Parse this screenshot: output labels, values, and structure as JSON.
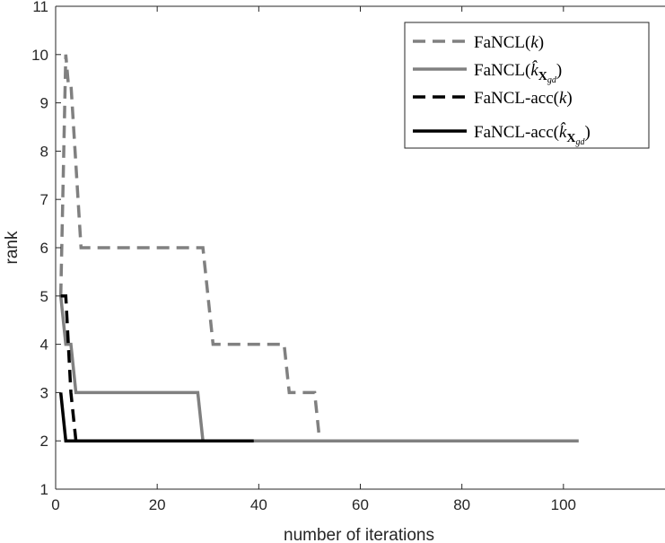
{
  "chart_data": {
    "type": "line",
    "xlabel": "number of iterations",
    "ylabel": "rank",
    "xlim": [
      0,
      120
    ],
    "ylim": [
      1,
      11
    ],
    "xticks": [
      "0",
      "20",
      "40",
      "60",
      "80",
      "100"
    ],
    "yticks": [
      "1",
      "2",
      "3",
      "4",
      "5",
      "6",
      "7",
      "8",
      "9",
      "10",
      "11"
    ],
    "grid": false,
    "legend_position": "top-right",
    "series": [
      {
        "name": "FaNCL(k)",
        "legend_main": "FaNCL(",
        "legend_k": "k",
        "legend_sub": "",
        "legend_tail": ")",
        "color": "#808080",
        "dash": "dashed",
        "x": [
          1,
          2,
          2.5,
          3,
          5,
          29,
          31,
          45,
          46,
          51,
          52
        ],
        "y": [
          5,
          10,
          9.4,
          9.4,
          6,
          6,
          4,
          4,
          3,
          3,
          2
        ]
      },
      {
        "name": "FaNCL(k̂ X_gd)",
        "legend_main": "FaNCL(",
        "legend_k": "k̂",
        "legend_sub": "X",
        "legend_subsub": "gd",
        "legend_tail": ")",
        "color": "#808080",
        "dash": "solid",
        "x": [
          1,
          2,
          3,
          4,
          28,
          29,
          103
        ],
        "y": [
          5,
          4,
          4,
          3,
          3,
          2,
          2
        ]
      },
      {
        "name": "FaNCL-acc(k)",
        "legend_main": "FaNCL-acc(",
        "legend_k": "k",
        "legend_sub": "",
        "legend_tail": ")",
        "color": "#000000",
        "dash": "dashed",
        "x": [
          1,
          2,
          3,
          4
        ],
        "y": [
          5,
          5,
          3,
          2
        ]
      },
      {
        "name": "FaNCL-acc(k̂ X_gd)",
        "legend_main": "FaNCL-acc(",
        "legend_k": "k̂",
        "legend_sub": "X",
        "legend_subsub": "gd",
        "legend_tail": ")",
        "color": "#000000",
        "dash": "solid",
        "x": [
          1,
          2,
          39
        ],
        "y": [
          3,
          2,
          2
        ]
      }
    ]
  }
}
